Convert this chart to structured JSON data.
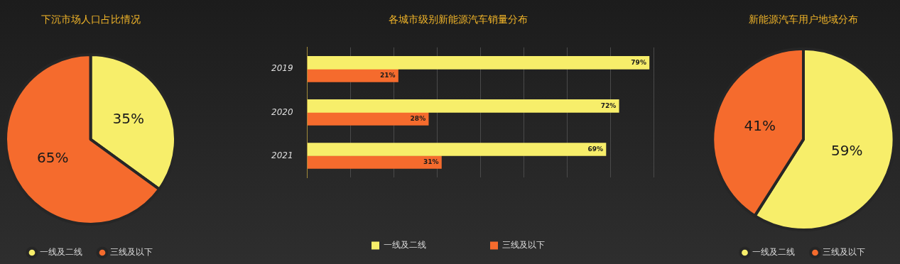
{
  "chart_data": [
    {
      "type": "pie",
      "title": "下沉市场人口占比情况",
      "categories": [
        "一线及二线",
        "三线及以下"
      ],
      "values": [
        35,
        65
      ],
      "colors": [
        "#f7ee6a",
        "#f56b2d"
      ],
      "value_labels": [
        "35%",
        "65%"
      ],
      "legend": "bottom"
    },
    {
      "type": "bar",
      "orientation": "horizontal",
      "title": "各城市级别新能源汽车销量分布",
      "categories": [
        "2019",
        "2020",
        "2021"
      ],
      "series": [
        {
          "name": "一线及二线",
          "color": "#f7ee6a",
          "values": [
            79,
            72,
            69
          ],
          "value_labels": [
            "79%",
            "72%",
            "69%"
          ]
        },
        {
          "name": "三线及以下",
          "color": "#f56b2d",
          "values": [
            21,
            28,
            31
          ],
          "value_labels": [
            "21%",
            "28%",
            "31%"
          ]
        }
      ],
      "xlim": [
        0,
        80
      ],
      "xticks": [
        {
          "value": 0,
          "label": null
        },
        {
          "value": 10,
          "label": null
        },
        {
          "value": 20,
          "label": null
        },
        {
          "value": 30,
          "label": null
        },
        {
          "value": 40,
          "label": null
        },
        {
          "value": 50,
          "label": null
        },
        {
          "value": 60,
          "label": null
        },
        {
          "value": 70,
          "label": null
        },
        {
          "value": 80,
          "label": null
        }
      ],
      "tick_labels": "y",
      "grid": "x",
      "legend": "bottom"
    },
    {
      "type": "pie",
      "title": "新能源汽车用户地域分布",
      "categories": [
        "一线及二线",
        "三线及以下"
      ],
      "values": [
        59,
        41
      ],
      "colors": [
        "#f7ee6a",
        "#f56b2d"
      ],
      "value_labels": [
        "59%",
        "41%"
      ],
      "legend": "bottom"
    }
  ]
}
